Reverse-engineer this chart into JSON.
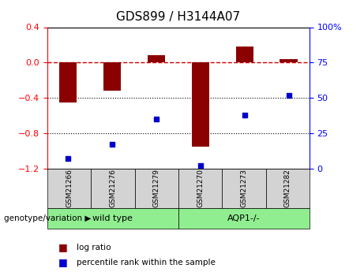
{
  "title": "GDS899 / H3144A07",
  "samples": [
    "GSM21266",
    "GSM21276",
    "GSM21279",
    "GSM21270",
    "GSM21273",
    "GSM21282"
  ],
  "log_ratio": [
    -0.45,
    -0.32,
    0.08,
    -0.95,
    0.18,
    0.04
  ],
  "percentile_rank": [
    7,
    17,
    35,
    2,
    38,
    52
  ],
  "wild_type_samples": [
    "GSM21266",
    "GSM21276",
    "GSM21279"
  ],
  "aqp1_samples": [
    "GSM21270",
    "GSM21273",
    "GSM21282"
  ],
  "ylim_left": [
    -1.2,
    0.4
  ],
  "ylim_right": [
    0,
    100
  ],
  "bar_color": "#8B0000",
  "dot_color": "#0000CD",
  "ref_line_color": "#CC0000",
  "grid_line_color": "#000000",
  "wildtype_color": "#90EE90",
  "aqp1_color": "#90EE90",
  "label_box_color": "#D3D3D3",
  "legend_log_ratio": "log ratio",
  "legend_percentile": "percentile rank within the sample",
  "genotype_label": "genotype/variation",
  "wildtype_label": "wild type",
  "aqp1_label": "AQP1-/-"
}
